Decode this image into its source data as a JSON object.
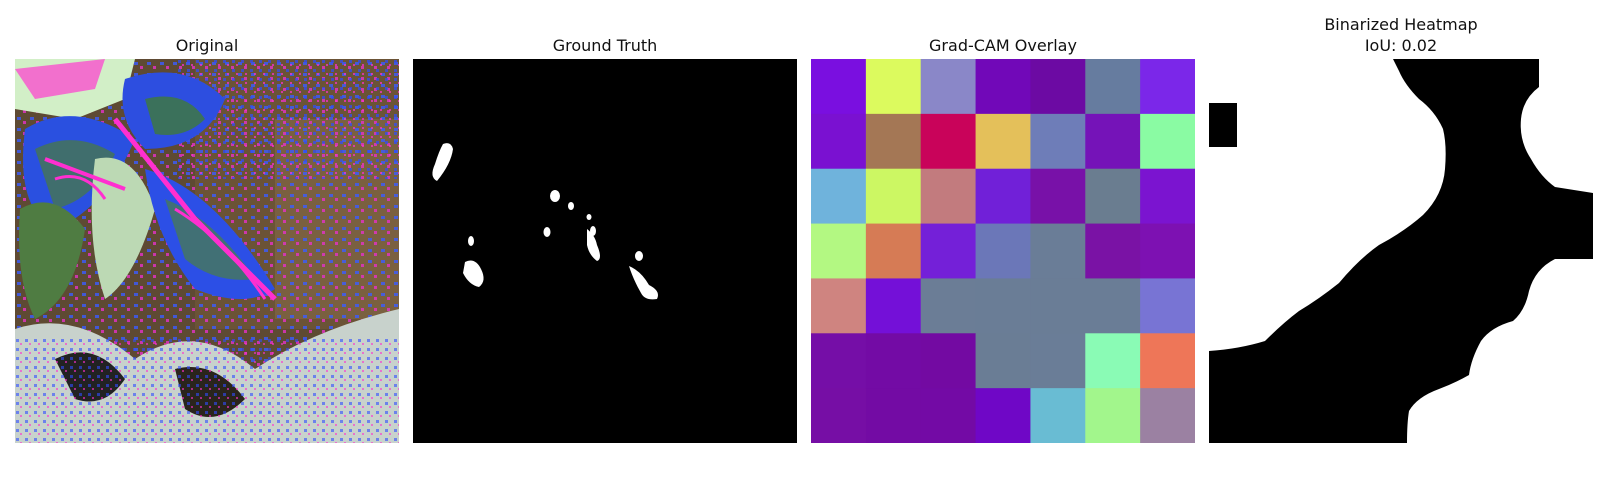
{
  "panels": [
    {
      "id": "original",
      "title": "Original",
      "subtitle": "",
      "image": "leaf photograph with false-color artifacts"
    },
    {
      "id": "ground-truth",
      "title": "Ground Truth",
      "subtitle": "",
      "image": "binary mask with small white blobs"
    },
    {
      "id": "gradcam",
      "title": "Grad-CAM Overlay",
      "subtitle": "",
      "image": "7x7 colored grid heatmap"
    },
    {
      "id": "binarized",
      "title": "Binarized Heatmap",
      "subtitle": "IoU: 0.02",
      "image": "binary heatmap with large white region"
    }
  ],
  "colors": {
    "mask_bg": "#000000",
    "mask_fg": "#ffffff",
    "gradcam_grid": [
      [
        "#7a0fe0",
        "#dcfa5e",
        "#8a87c8",
        "#7108b8",
        "#6c0aa3",
        "#667c9f",
        "#7b27e9"
      ],
      [
        "#7a11d1",
        "#a47755",
        "#c9035a",
        "#e4c05a",
        "#6e7db8",
        "#7513b8",
        "#8afba3"
      ],
      [
        "#6fb3dc",
        "#ccf763",
        "#c27b7e",
        "#7120d8",
        "#7811a8",
        "#6a7d90",
        "#7b14d0"
      ],
      [
        "#b3f882",
        "#d67b55",
        "#7420d8",
        "#6b77b8",
        "#6a7d97",
        "#7a12a5",
        "#7d11b2"
      ],
      [
        "#cf8480",
        "#7410d8",
        "#6b7d96",
        "#6a7d96",
        "#6a7d96",
        "#6a7d96",
        "#7874d4"
      ],
      [
        "#750ea7",
        "#730ba5",
        "#730aa2",
        "#6a7d95",
        "#6a7d97",
        "#8afbb5",
        "#ee7658"
      ],
      [
        "#760ea5",
        "#730ba4",
        "#730aa5",
        "#6f07c6",
        "#69bcd3",
        "#a2f68c",
        "#9b81a2"
      ]
    ]
  }
}
